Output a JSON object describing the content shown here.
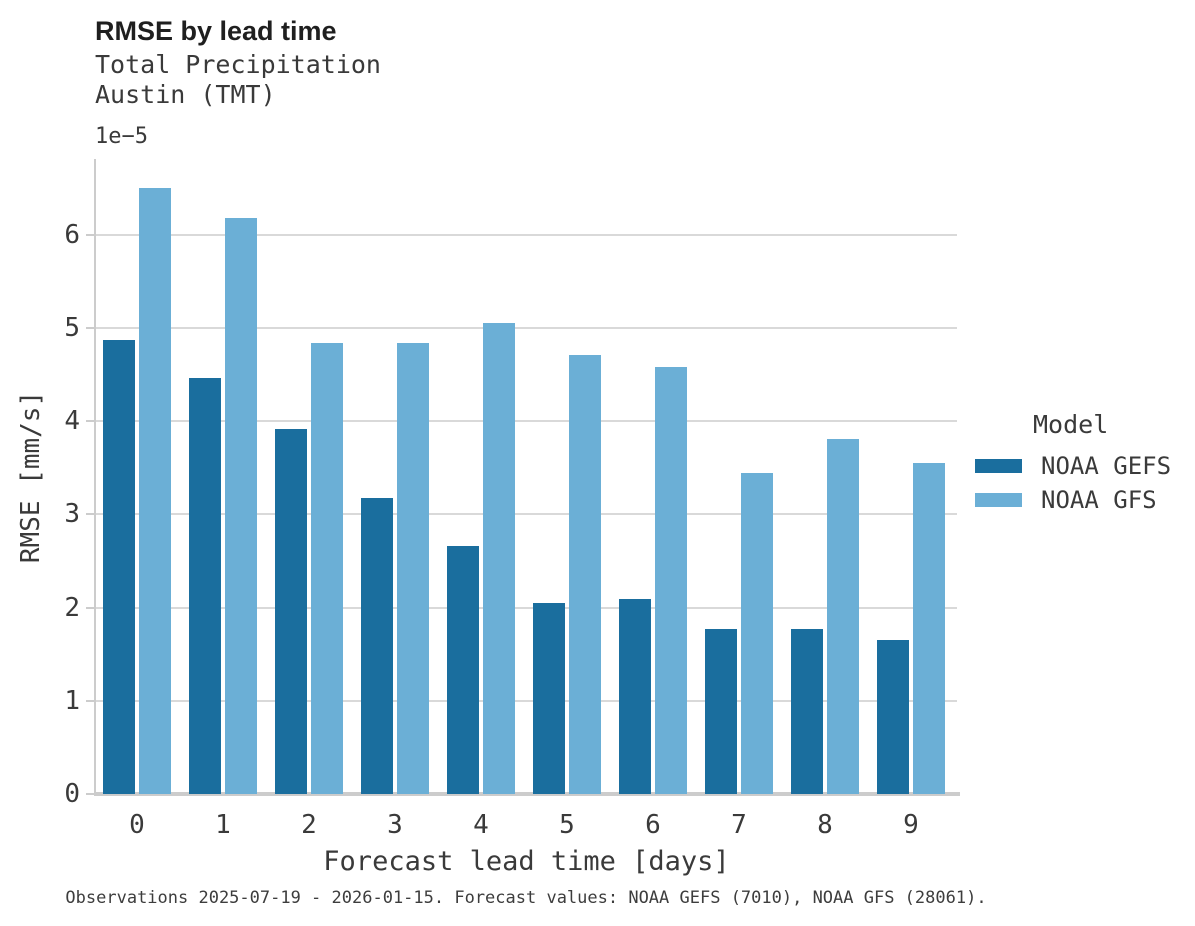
{
  "header": {
    "title": "RMSE by lead time",
    "subtitle_line1": "Total Precipitation",
    "subtitle_line2": "Austin (TMT)"
  },
  "chart_data": {
    "type": "bar",
    "title": "RMSE by lead time",
    "subtitle": [
      "Total Precipitation",
      "Austin (TMT)"
    ],
    "categories": [
      "0",
      "1",
      "2",
      "3",
      "4",
      "5",
      "6",
      "7",
      "8",
      "9"
    ],
    "series": [
      {
        "name": "NOAA GEFS",
        "color": "#1a6e9e",
        "values": [
          4.87,
          4.46,
          3.92,
          3.18,
          2.66,
          2.05,
          2.09,
          1.77,
          1.77,
          1.65
        ]
      },
      {
        "name": "NOAA GFS",
        "color": "#6bafd6",
        "values": [
          6.5,
          6.18,
          4.84,
          4.84,
          5.06,
          4.71,
          4.58,
          3.44,
          3.81,
          3.55
        ]
      }
    ],
    "value_scale_note": "values are x 1e-5",
    "y_offset_label": "1e−5",
    "xlabel": "Forecast lead time [days]",
    "ylabel": "RMSE [mm/s]",
    "yticks": [
      0,
      1,
      2,
      3,
      4,
      5,
      6
    ],
    "ylim": [
      0,
      6.815
    ],
    "grid": "horizontal",
    "gridline_color": "#d9d9d9",
    "axis_color": "#cccccc",
    "legend_title": "Model",
    "legend_position": "right"
  },
  "footer": {
    "note": "Observations 2025-07-19 - 2026-01-15. Forecast values: NOAA GEFS (7010), NOAA GFS (28061)."
  }
}
